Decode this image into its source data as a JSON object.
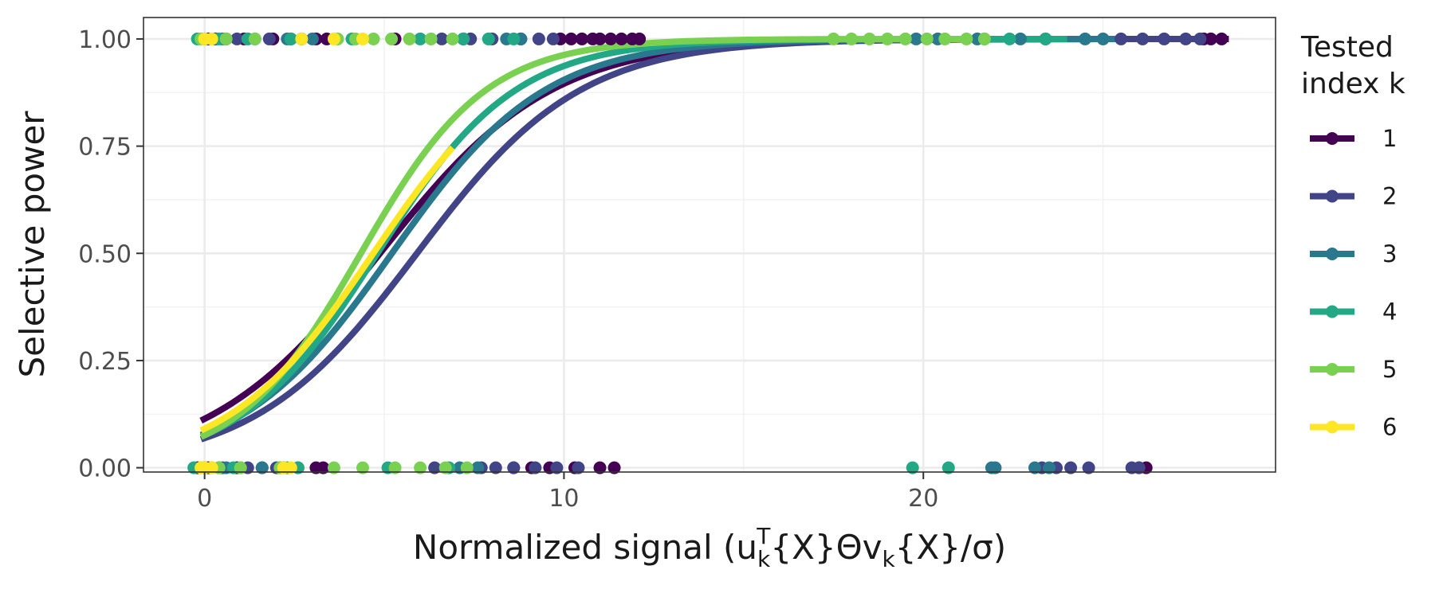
{
  "chart_data": {
    "type": "scatter",
    "xlabel": {
      "prefix": "Normalized signal (u",
      "sub1": "k",
      "sup1": "T",
      "mid": "{X}Θv",
      "sub2": "k",
      "suffix": "{X}/σ)"
    },
    "ylabel": "Selective power",
    "xlim": [
      -1.7,
      29.8
    ],
    "ylim": [
      -0.01,
      1.05
    ],
    "x_ticks": [
      {
        "value": 0,
        "label": "0"
      },
      {
        "value": 10,
        "label": "10"
      },
      {
        "value": 20,
        "label": "20"
      }
    ],
    "x_minor_ticks": [
      5,
      15,
      25
    ],
    "y_ticks": [
      {
        "value": 0,
        "label": "0.00"
      },
      {
        "value": 0.25,
        "label": "0.25"
      },
      {
        "value": 0.5,
        "label": "0.50"
      },
      {
        "value": 0.75,
        "label": "0.75"
      },
      {
        "value": 1,
        "label": "1.00"
      }
    ],
    "y_minor_ticks": [
      0.125,
      0.375,
      0.625,
      0.875
    ],
    "grid": true,
    "legend": {
      "title": [
        "Tested",
        "index k"
      ],
      "placement": "right"
    },
    "series": [
      {
        "name": "1",
        "color": "#440154",
        "curve": {
          "intercept": -2.05,
          "slope": 0.42,
          "x_range": [
            -0.1,
            28.5
          ]
        },
        "points": [
          [
            -0.2,
            0
          ],
          [
            0.1,
            0
          ],
          [
            0.4,
            0
          ],
          [
            0.9,
            0
          ],
          [
            1.6,
            0
          ],
          [
            2.2,
            0
          ],
          [
            3.1,
            0
          ],
          [
            3.3,
            0
          ],
          [
            8.6,
            0
          ],
          [
            9.1,
            0
          ],
          [
            9.6,
            0
          ],
          [
            10.3,
            0
          ],
          [
            11.0,
            0
          ],
          [
            11.4,
            0
          ],
          [
            26.0,
            0
          ],
          [
            26.2,
            0
          ],
          [
            0.1,
            1
          ],
          [
            0.3,
            1
          ],
          [
            0.6,
            1
          ],
          [
            1.1,
            1
          ],
          [
            1.9,
            1
          ],
          [
            2.7,
            1
          ],
          [
            3.1,
            1
          ],
          [
            3.4,
            1
          ],
          [
            5.3,
            1
          ],
          [
            7.2,
            1
          ],
          [
            9.9,
            1
          ],
          [
            10.2,
            1
          ],
          [
            10.5,
            1
          ],
          [
            10.8,
            1
          ],
          [
            11.0,
            1
          ],
          [
            11.3,
            1
          ],
          [
            11.6,
            1
          ],
          [
            11.9,
            1
          ],
          [
            12.1,
            1
          ],
          [
            27.8,
            1
          ],
          [
            28.0,
            1
          ],
          [
            28.3,
            1
          ]
        ]
      },
      {
        "name": "2",
        "color": "#414487",
        "curve": {
          "intercept": -2.6,
          "slope": 0.44,
          "x_range": [
            -0.1,
            28.0
          ]
        },
        "points": [
          [
            0.0,
            0
          ],
          [
            0.5,
            0
          ],
          [
            1.2,
            0
          ],
          [
            2.0,
            0
          ],
          [
            2.6,
            0
          ],
          [
            6.4,
            0
          ],
          [
            7.7,
            0
          ],
          [
            8.1,
            0
          ],
          [
            8.6,
            0
          ],
          [
            9.2,
            0
          ],
          [
            9.8,
            0
          ],
          [
            10.4,
            0
          ],
          [
            23.3,
            0
          ],
          [
            23.7,
            0
          ],
          [
            24.1,
            0
          ],
          [
            24.6,
            0
          ],
          [
            25.8,
            0
          ],
          [
            26.0,
            0
          ],
          [
            0.0,
            1
          ],
          [
            0.3,
            1
          ],
          [
            0.9,
            1
          ],
          [
            1.8,
            1
          ],
          [
            2.4,
            1
          ],
          [
            6.6,
            1
          ],
          [
            7.4,
            1
          ],
          [
            8.0,
            1
          ],
          [
            8.8,
            1
          ],
          [
            9.3,
            1
          ],
          [
            9.7,
            1
          ],
          [
            25.5,
            1
          ],
          [
            26.1,
            1
          ],
          [
            26.7,
            1
          ],
          [
            27.3,
            1
          ],
          [
            27.7,
            1
          ]
        ]
      },
      {
        "name": "3",
        "color": "#2a788e",
        "curve": {
          "intercept": -2.45,
          "slope": 0.47,
          "x_range": [
            -0.1,
            25.5
          ]
        },
        "points": [
          [
            -0.1,
            0
          ],
          [
            0.6,
            0
          ],
          [
            1.0,
            0
          ],
          [
            1.6,
            0
          ],
          [
            2.1,
            0
          ],
          [
            7.1,
            0
          ],
          [
            7.6,
            0
          ],
          [
            21.9,
            0
          ],
          [
            22.0,
            0
          ],
          [
            23.1,
            0
          ],
          [
            23.5,
            0
          ],
          [
            0.0,
            1
          ],
          [
            0.5,
            1
          ],
          [
            1.4,
            1
          ],
          [
            2.3,
            1
          ],
          [
            3.0,
            1
          ],
          [
            8.4,
            1
          ],
          [
            8.8,
            1
          ],
          [
            19.8,
            1
          ],
          [
            20.4,
            1
          ],
          [
            21.5,
            1
          ],
          [
            22.7,
            1
          ],
          [
            23.4,
            1
          ],
          [
            24.5,
            1
          ],
          [
            25.0,
            1
          ]
        ]
      },
      {
        "name": "4",
        "color": "#22a884",
        "curve": {
          "intercept": -2.5,
          "slope": 0.52,
          "x_range": [
            -0.1,
            24.0
          ]
        },
        "points": [
          [
            -0.3,
            0
          ],
          [
            0.2,
            0
          ],
          [
            0.8,
            0
          ],
          [
            2.3,
            0
          ],
          [
            2.6,
            0
          ],
          [
            5.1,
            0
          ],
          [
            6.8,
            0
          ],
          [
            19.7,
            0
          ],
          [
            20.7,
            0
          ],
          [
            -0.2,
            1
          ],
          [
            0.4,
            1
          ],
          [
            1.2,
            1
          ],
          [
            2.4,
            1
          ],
          [
            4.1,
            1
          ],
          [
            6.0,
            1
          ],
          [
            7.2,
            1
          ],
          [
            7.9,
            1
          ],
          [
            8.6,
            1
          ],
          [
            21.7,
            1
          ],
          [
            22.4,
            1
          ],
          [
            23.4,
            1
          ]
        ]
      },
      {
        "name": "5",
        "color": "#7ad151",
        "curve": {
          "intercept": -2.5,
          "slope": 0.575,
          "x_range": [
            -0.1,
            21.8
          ]
        },
        "points": [
          [
            -0.1,
            0
          ],
          [
            0.4,
            0
          ],
          [
            1.0,
            0
          ],
          [
            2.1,
            0
          ],
          [
            3.6,
            0
          ],
          [
            4.4,
            0
          ],
          [
            5.3,
            0
          ],
          [
            6.0,
            0
          ],
          [
            6.7,
            0
          ],
          [
            7.3,
            0
          ],
          [
            -0.1,
            1
          ],
          [
            0.6,
            1
          ],
          [
            1.4,
            1
          ],
          [
            3.7,
            1
          ],
          [
            4.2,
            1
          ],
          [
            4.7,
            1
          ],
          [
            5.2,
            1
          ],
          [
            5.7,
            1
          ],
          [
            6.3,
            1
          ],
          [
            6.9,
            1
          ],
          [
            17.5,
            1
          ],
          [
            18.0,
            1
          ],
          [
            18.5,
            1
          ],
          [
            19.0,
            1
          ],
          [
            19.5,
            1
          ],
          [
            20.1,
            1
          ],
          [
            20.6,
            1
          ],
          [
            21.2,
            1
          ],
          [
            21.7,
            1
          ]
        ]
      },
      {
        "name": "6",
        "color": "#fde725",
        "curve": {
          "intercept": -2.3,
          "slope": 0.49,
          "x_range": [
            -0.1,
            6.9
          ]
        },
        "points": [
          [
            -0.1,
            0
          ],
          [
            0.0,
            0
          ],
          [
            0.2,
            0
          ],
          [
            2.2,
            0
          ],
          [
            2.4,
            0
          ],
          [
            0.0,
            1
          ],
          [
            0.2,
            1
          ],
          [
            2.7,
            1
          ],
          [
            3.6,
            1
          ],
          [
            4.4,
            1
          ]
        ]
      }
    ]
  }
}
